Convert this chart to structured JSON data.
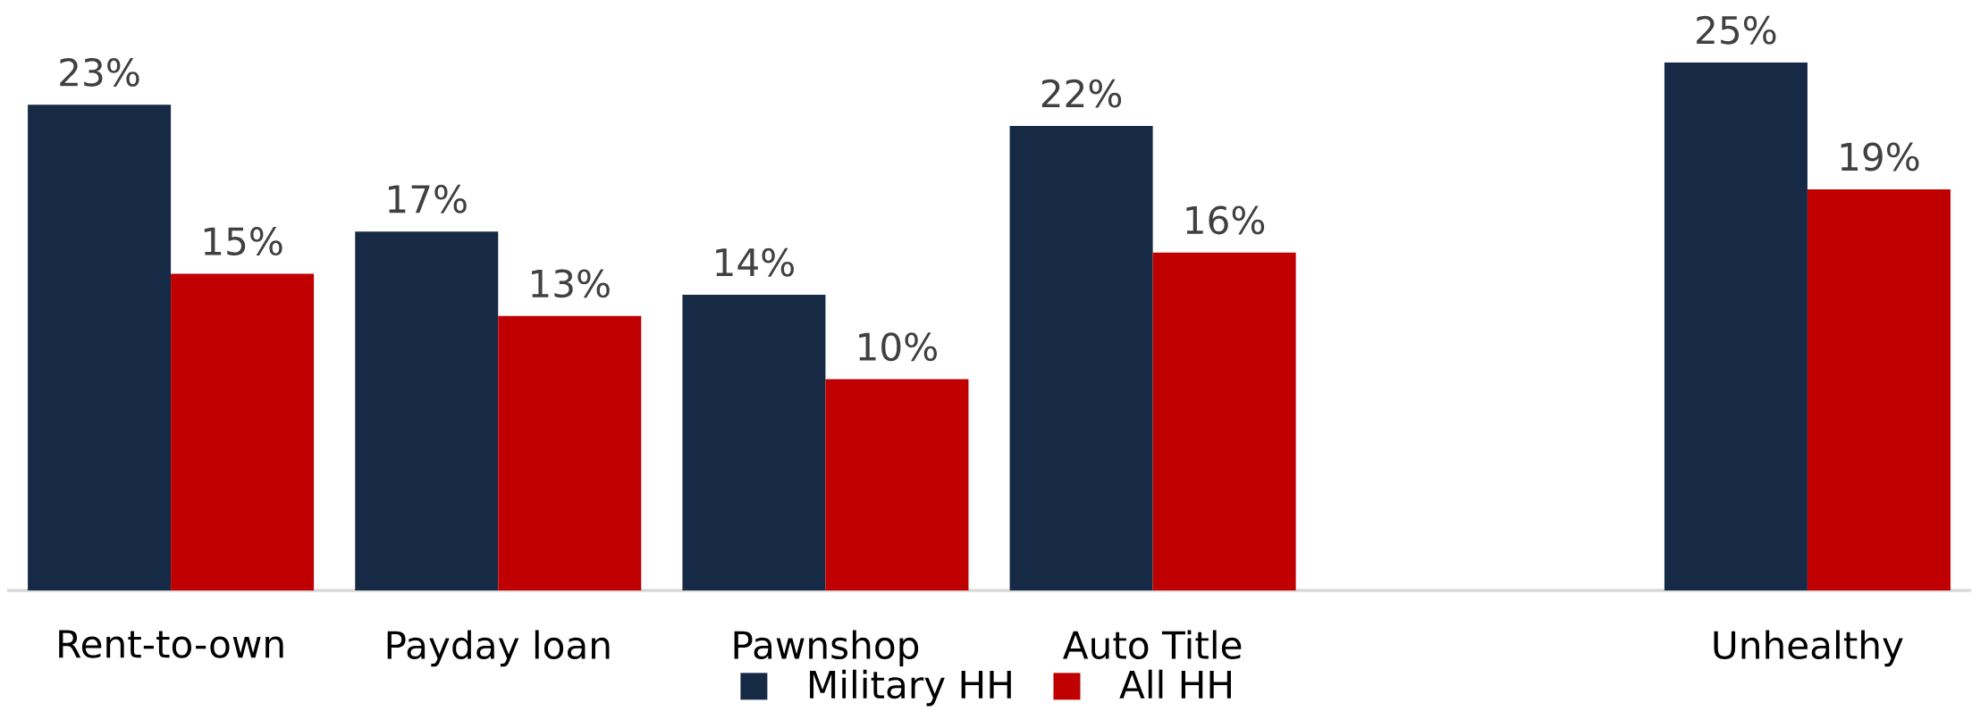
{
  "chart_data": {
    "type": "bar",
    "categories": [
      "Rent-to-own",
      "Payday loan",
      "Pawnshop",
      "Auto Title",
      null,
      "Unhealthy"
    ],
    "series": [
      {
        "name": "Military HH",
        "color": "#172a45",
        "values": [
          23,
          17,
          14,
          22,
          null,
          25
        ],
        "value_labels": [
          "23%",
          "17%",
          "14%",
          "22%",
          null,
          "25%"
        ]
      },
      {
        "name": "All HH",
        "color": "#c00000",
        "values": [
          15,
          13,
          10,
          16,
          null,
          19
        ],
        "value_labels": [
          "15%",
          "13%",
          "10%",
          "16%",
          null,
          "19%"
        ]
      }
    ],
    "legend": "bottom"
  }
}
